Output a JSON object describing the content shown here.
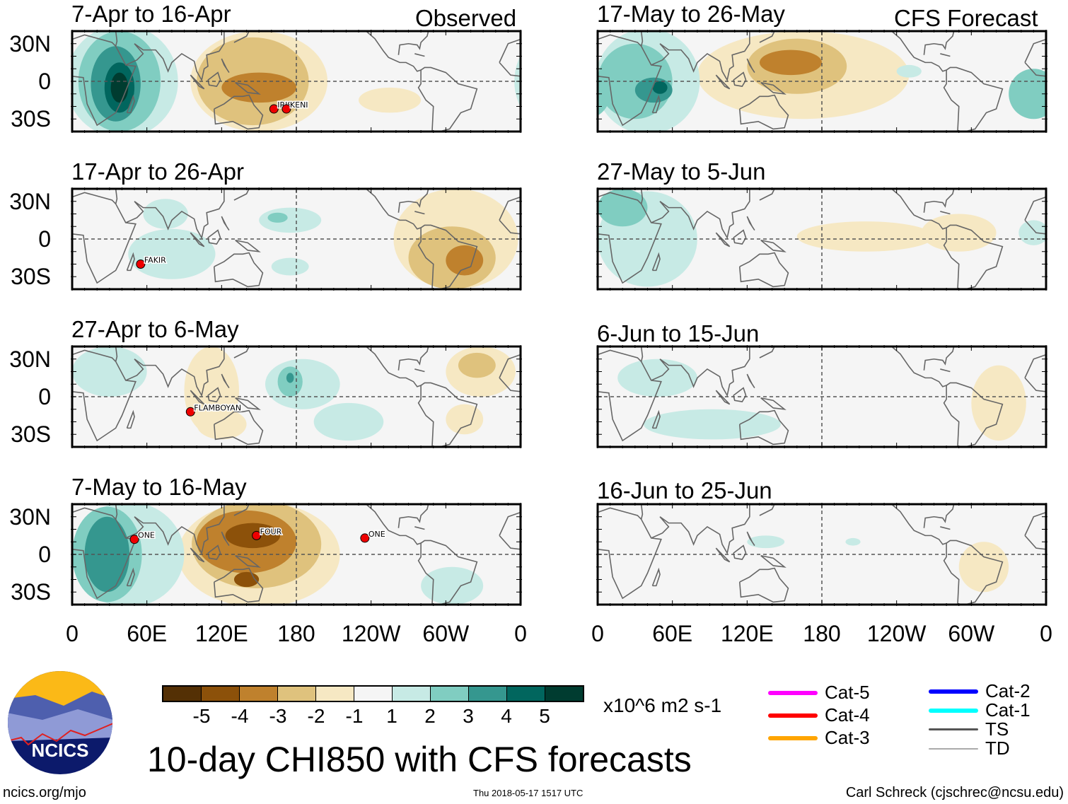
{
  "header": {
    "observed_label": "Observed",
    "forecast_label": "CFS Forecast"
  },
  "axes": {
    "lat_labels": [
      "30N",
      "0",
      "30S"
    ],
    "lon_labels": [
      "0",
      "60E",
      "120E",
      "180",
      "120W",
      "60W",
      "0"
    ]
  },
  "chart_data": [
    {
      "type": "heatmap",
      "title": "7-Apr to 16-Apr",
      "group": "Observed",
      "blobs": [
        [
          40,
          0,
          45,
          45,
          1
        ],
        [
          38,
          0,
          33,
          40,
          2
        ],
        [
          35,
          -2,
          20,
          30,
          3
        ],
        [
          38,
          -5,
          12,
          20,
          4
        ],
        [
          38,
          -5,
          7,
          12,
          5
        ],
        [
          150,
          0,
          55,
          40,
          -1
        ],
        [
          145,
          0,
          45,
          35,
          -2
        ],
        [
          150,
          -5,
          30,
          12,
          -3
        ],
        [
          255,
          -15,
          25,
          10,
          -1
        ]
      ],
      "storms": [
        {
          "name": "IRIS",
          "lon": 162,
          "lat": -22
        },
        {
          "name": "KENI",
          "lon": 172,
          "lat": -22
        }
      ]
    },
    {
      "type": "heatmap",
      "title": "17-Apr to 26-Apr",
      "group": "Observed",
      "blobs": [
        [
          80,
          -12,
          35,
          20,
          1
        ],
        [
          75,
          20,
          18,
          12,
          1
        ],
        [
          175,
          15,
          25,
          10,
          1
        ],
        [
          165,
          17,
          8,
          4,
          2
        ],
        [
          175,
          -22,
          15,
          7,
          1
        ],
        [
          308,
          0,
          50,
          40,
          -1
        ],
        [
          305,
          -15,
          35,
          25,
          -2
        ],
        [
          315,
          -17,
          15,
          12,
          -3
        ]
      ],
      "storms": [
        {
          "name": "FAKIR",
          "lon": 55,
          "lat": -20
        }
      ]
    },
    {
      "type": "heatmap",
      "title": "27-Apr to 6-May",
      "group": "Observed",
      "blobs": [
        [
          30,
          20,
          30,
          20,
          1
        ],
        [
          112,
          5,
          22,
          35,
          -1
        ],
        [
          120,
          -22,
          20,
          12,
          -1
        ],
        [
          185,
          10,
          30,
          20,
          1
        ],
        [
          175,
          12,
          10,
          12,
          2
        ],
        [
          175,
          15,
          3,
          4,
          3
        ],
        [
          222,
          -20,
          28,
          15,
          1
        ],
        [
          328,
          20,
          28,
          20,
          -1
        ],
        [
          325,
          25,
          15,
          10,
          -2
        ],
        [
          315,
          -18,
          15,
          12,
          -1
        ]
      ],
      "storms": [
        {
          "name": "FLAMBOYAN",
          "lon": 95,
          "lat": -12
        }
      ]
    },
    {
      "type": "heatmap",
      "title": "7-May to 16-May",
      "group": "Observed",
      "blobs": [
        [
          45,
          0,
          45,
          42,
          1
        ],
        [
          28,
          0,
          28,
          38,
          2
        ],
        [
          28,
          0,
          18,
          30,
          3
        ],
        [
          150,
          0,
          65,
          42,
          -1
        ],
        [
          148,
          8,
          52,
          35,
          -2
        ],
        [
          140,
          10,
          40,
          25,
          -3
        ],
        [
          145,
          15,
          22,
          10,
          -4
        ],
        [
          140,
          -20,
          10,
          6,
          -4
        ],
        [
          305,
          -25,
          25,
          15,
          1
        ]
      ],
      "storms": [
        {
          "name": "ONE",
          "lon": 50,
          "lat": 12
        },
        {
          "name": "FOUR",
          "lon": 148,
          "lat": 15
        },
        {
          "name": "ONE",
          "lon": 235,
          "lat": 13
        }
      ]
    },
    {
      "type": "heatmap",
      "title": "17-May to 26-May",
      "group": "CFS Forecast",
      "blobs": [
        [
          40,
          0,
          42,
          42,
          1
        ],
        [
          30,
          0,
          30,
          30,
          2
        ],
        [
          45,
          -7,
          15,
          10,
          3
        ],
        [
          50,
          -5,
          6,
          5,
          4
        ],
        [
          165,
          5,
          85,
          35,
          -1
        ],
        [
          160,
          12,
          40,
          22,
          -2
        ],
        [
          155,
          15,
          25,
          10,
          -3
        ],
        [
          350,
          -10,
          20,
          20,
          2
        ],
        [
          250,
          8,
          10,
          5,
          1
        ]
      ],
      "storms": []
    },
    {
      "type": "heatmap",
      "title": "27-May to 5-Jun",
      "group": "CFS Forecast",
      "blobs": [
        [
          40,
          0,
          40,
          38,
          1
        ],
        [
          20,
          25,
          20,
          15,
          2
        ],
        [
          215,
          2,
          55,
          12,
          -1
        ],
        [
          290,
          5,
          30,
          15,
          -1
        ],
        [
          350,
          5,
          12,
          10,
          1
        ]
      ],
      "storms": []
    },
    {
      "type": "heatmap",
      "title": "6-Jun to 15-Jun",
      "group": "CFS Forecast",
      "blobs": [
        [
          48,
          15,
          32,
          15,
          1
        ],
        [
          92,
          -22,
          55,
          12,
          1
        ],
        [
          322,
          -5,
          22,
          30,
          -1
        ]
      ],
      "storms": []
    },
    {
      "type": "heatmap",
      "title": "16-Jun to 25-Jun",
      "group": "CFS Forecast",
      "blobs": [
        [
          310,
          -10,
          20,
          20,
          -1
        ],
        [
          135,
          10,
          15,
          5,
          1
        ],
        [
          205,
          10,
          6,
          3,
          1
        ]
      ],
      "storms": []
    }
  ],
  "colorbar": {
    "levels": [
      "-5",
      "-4",
      "-3",
      "-2",
      "-1",
      "1",
      "2",
      "3",
      "4",
      "5"
    ],
    "colors": [
      "#543005",
      "#8c510a",
      "#bf812d",
      "#dfc27d",
      "#f6e8c3",
      "#f5f5f5",
      "#c7eae5",
      "#80cdc1",
      "#35978f",
      "#01665e",
      "#003c30"
    ],
    "units": "x10^6 m2 s-1"
  },
  "legend": [
    {
      "label": "Cat-5",
      "color": "#ff00ff"
    },
    {
      "label": "Cat-4",
      "color": "#ff0000"
    },
    {
      "label": "Cat-3",
      "color": "#ffa500"
    },
    {
      "label": "Cat-2",
      "color": "#0000ff"
    },
    {
      "label": "Cat-1",
      "color": "#00ffff"
    },
    {
      "label": "TS",
      "color": "#555555"
    },
    {
      "label": "TD",
      "color": "#aaaaaa"
    }
  ],
  "footer": {
    "title": "10-day CHI850 with CFS forecasts",
    "url": "ncics.org/mjo",
    "timestamp": "Thu 2018-05-17 1517 UTC",
    "credit": "Carl Schreck (cjschrec@ncsu.edu)",
    "logo_text": "NCICS"
  }
}
